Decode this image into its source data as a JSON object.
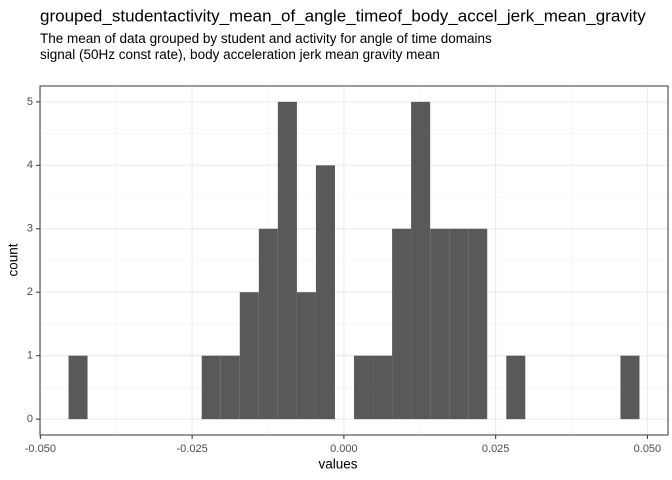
{
  "chart_data": {
    "type": "histogram",
    "title": "grouped_studentactivity_mean_of_angle_timeof_body_accel_jerk_mean_gravity",
    "subtitle": "The mean of data grouped by student and activity for angle of time domains signal (50Hz const rate), body acceleration jerk mean gravity mean",
    "x_label": "values",
    "y_label": "count",
    "bins": [
      -0.04536,
      -0.04223,
      -0.03909,
      -0.03596,
      -0.03282,
      -0.02969,
      -0.02655,
      -0.02342,
      -0.02028,
      -0.01715,
      -0.01401,
      -0.01088,
      -0.00774,
      -0.00461,
      -0.00147,
      0.00167,
      0.0048,
      0.00794,
      0.01107,
      0.01421,
      0.01734,
      0.02048,
      0.02361,
      0.02675,
      0.02988,
      0.03302,
      0.03615,
      0.03929,
      0.04242,
      0.04556,
      0.04869
    ],
    "values": [
      1,
      0,
      0,
      0,
      0,
      0,
      0,
      1,
      1,
      2,
      3,
      5,
      2,
      4,
      0,
      1,
      1,
      3,
      5,
      3,
      3,
      3,
      0,
      1,
      0,
      0,
      0,
      0,
      0,
      1
    ],
    "color": "#595959",
    "xlim": [
      -0.05006,
      0.05339
    ],
    "ylim": [
      -0.25,
      5.25
    ],
    "xticks": [
      {
        "value": -0.05,
        "label": "-0.050"
      },
      {
        "value": -0.025,
        "label": "-0.025"
      },
      {
        "value": 0,
        "label": "0.000"
      },
      {
        "value": 0.025,
        "label": "0.025"
      },
      {
        "value": 0.05,
        "label": "0.050"
      }
    ],
    "yticks": [
      0,
      1,
      2,
      3,
      4,
      5
    ],
    "grid": true
  }
}
